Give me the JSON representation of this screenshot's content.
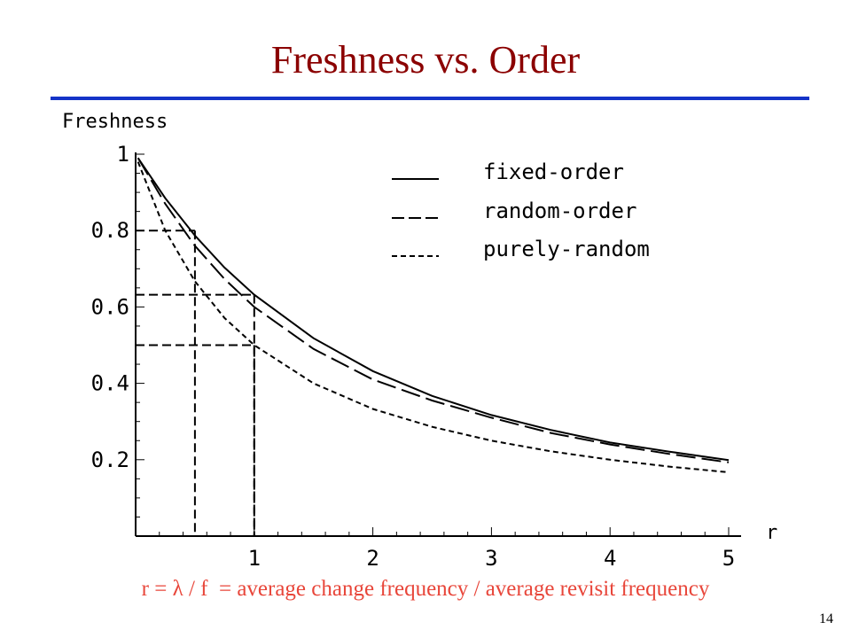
{
  "slide": {
    "title": "Freshness vs. Order",
    "caption": "r = λ / f  = average change frequency / average revisit frequency",
    "page_number": "14"
  },
  "colors": {
    "title": "#8b0000",
    "rule": "#1433c8",
    "caption": "#e8463a",
    "ink": "#000000"
  },
  "chart_data": {
    "type": "line",
    "ylabel": "Freshness",
    "xlabel": "r",
    "xlim": [
      0,
      5
    ],
    "ylim": [
      0,
      1
    ],
    "x_ticks": [
      1,
      2,
      3,
      4,
      5
    ],
    "y_ticks": [
      {
        "value": 0.2,
        "label": "0.2"
      },
      {
        "value": 0.4,
        "label": "0.4"
      },
      {
        "value": 0.6,
        "label": "0.6"
      },
      {
        "value": 0.8,
        "label": "0.8"
      },
      {
        "value": 1.0,
        "label": "1"
      }
    ],
    "legend_position": "top-right",
    "series": [
      {
        "name": "fixed-order",
        "style": "solid",
        "x": [
          0.02,
          0.25,
          0.5,
          0.75,
          1,
          1.5,
          2,
          2.5,
          3,
          3.5,
          4,
          4.5,
          5
        ],
        "y": [
          0.99,
          0.885,
          0.787,
          0.703,
          0.632,
          0.518,
          0.432,
          0.367,
          0.317,
          0.278,
          0.245,
          0.221,
          0.199
        ]
      },
      {
        "name": "random-order",
        "style": "dashed",
        "x": [
          0.02,
          0.25,
          0.5,
          0.75,
          1,
          1.5,
          2,
          2.5,
          3,
          3.5,
          4,
          4.5,
          5
        ],
        "y": [
          0.99,
          0.87,
          0.76,
          0.673,
          0.6,
          0.49,
          0.41,
          0.355,
          0.31,
          0.27,
          0.24,
          0.215,
          0.193
        ]
      },
      {
        "name": "purely-random",
        "style": "dotted",
        "x": [
          0.02,
          0.25,
          0.5,
          0.75,
          1,
          1.5,
          2,
          2.5,
          3,
          3.5,
          4,
          4.5,
          5
        ],
        "y": [
          0.98,
          0.8,
          0.667,
          0.571,
          0.5,
          0.4,
          0.333,
          0.286,
          0.25,
          0.222,
          0.2,
          0.182,
          0.167
        ]
      }
    ],
    "reference_lines": [
      {
        "x": 0.5,
        "y": 0.8
      },
      {
        "x": 1.0,
        "y": 0.632
      },
      {
        "x": 1.0,
        "y": 0.5
      }
    ]
  }
}
